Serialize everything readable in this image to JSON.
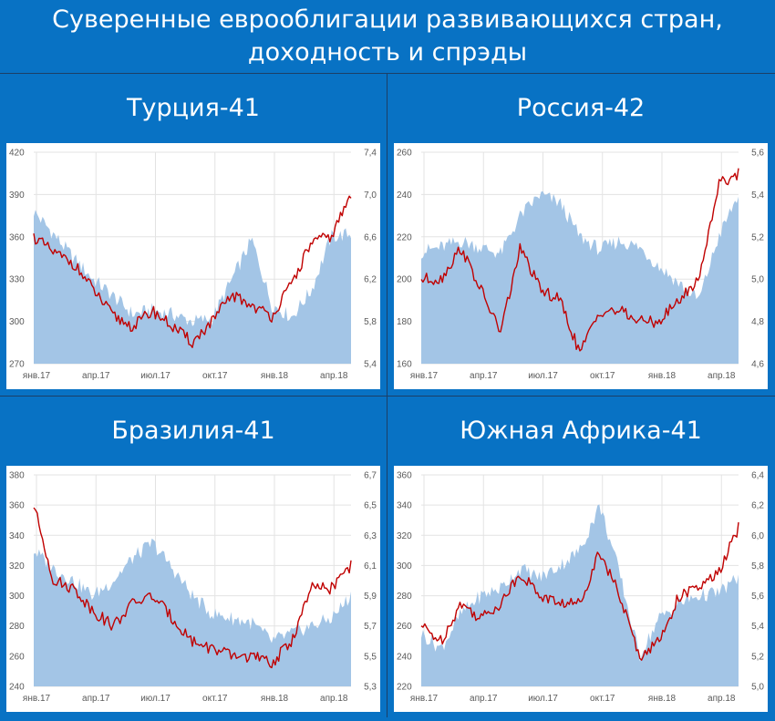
{
  "title_lines": [
    "Суверенные еврооблигации развивающихся стран,",
    "доходность и спрэды"
  ],
  "colors": {
    "background": "#0872c4",
    "area": "#a3c5e6",
    "line": "#c00000",
    "grid": "#e3e3e3"
  },
  "chart_data": [
    {
      "type": "area+line",
      "title": "Турция-41",
      "categories": [
        "янв.17",
        "апр.17",
        "июл.17",
        "окт.17",
        "янв.18",
        "апр.18"
      ],
      "x": [
        "2017-01",
        "2017-02",
        "2017-03",
        "2017-04",
        "2017-05",
        "2017-06",
        "2017-07",
        "2017-08",
        "2017-09",
        "2017-10",
        "2017-11",
        "2017-12",
        "2018-01",
        "2018-02",
        "2018-03",
        "2018-04",
        "2018-05"
      ],
      "left_axis": {
        "ticks": [
          "420",
          "390",
          "360",
          "330",
          "300",
          "270"
        ],
        "ylim": [
          270,
          420
        ]
      },
      "right_axis": {
        "ticks": [
          "7,4",
          "7,0",
          "6,6",
          "6,2",
          "5,8",
          "5,4"
        ],
        "ylim": [
          5.4,
          7.4
        ]
      },
      "series": [
        {
          "kind": "area",
          "axis": "left",
          "values": [
            378,
            362,
            345,
            330,
            318,
            305,
            308,
            305,
            300,
            302,
            330,
            358,
            312,
            303,
            322,
            360,
            362
          ]
        },
        {
          "kind": "line",
          "axis": "right",
          "values": [
            6.6,
            6.45,
            6.35,
            6.1,
            5.85,
            5.75,
            5.9,
            5.75,
            5.6,
            5.8,
            6.05,
            5.95,
            5.85,
            6.15,
            6.55,
            6.6,
            7.0
          ]
        }
      ]
    },
    {
      "type": "area+line",
      "title": "Россия-42",
      "categories": [
        "янв.17",
        "апр.17",
        "июл.17",
        "окт.17",
        "янв.18",
        "апр.18"
      ],
      "x": [
        "2017-01",
        "2017-02",
        "2017-03",
        "2017-04",
        "2017-05",
        "2017-06",
        "2017-07",
        "2017-08",
        "2017-09",
        "2017-10",
        "2017-11",
        "2017-12",
        "2018-01",
        "2018-02",
        "2018-03",
        "2018-04",
        "2018-05"
      ],
      "left_axis": {
        "ticks": [
          "260",
          "240",
          "220",
          "200",
          "180",
          "160"
        ],
        "ylim": [
          160,
          260
        ]
      },
      "right_axis": {
        "ticks": [
          "5,6",
          "5,4",
          "5,2",
          "5,0",
          "4,8",
          "4,6"
        ],
        "ylim": [
          4.6,
          5.6
        ]
      },
      "series": [
        {
          "kind": "area",
          "axis": "left",
          "values": [
            213,
            215,
            218,
            215,
            212,
            230,
            240,
            236,
            220,
            214,
            218,
            215,
            206,
            198,
            190,
            220,
            240
          ]
        },
        {
          "kind": "line",
          "axis": "right",
          "values": [
            5.0,
            5.0,
            5.15,
            4.95,
            4.75,
            5.15,
            4.95,
            4.9,
            4.65,
            4.85,
            4.85,
            4.8,
            4.8,
            4.9,
            5.0,
            5.45,
            5.5
          ]
        }
      ]
    },
    {
      "type": "area+line",
      "title": "Бразилия-41",
      "categories": [
        "янв.17",
        "апр.17",
        "июл.17",
        "окт.17",
        "янв.18",
        "апр.18"
      ],
      "x": [
        "2017-01",
        "2017-02",
        "2017-03",
        "2017-04",
        "2017-05",
        "2017-06",
        "2017-07",
        "2017-08",
        "2017-09",
        "2017-10",
        "2017-11",
        "2017-12",
        "2018-01",
        "2018-02",
        "2018-03",
        "2018-04",
        "2018-05"
      ],
      "left_axis": {
        "ticks": [
          "380",
          "360",
          "340",
          "320",
          "300",
          "280",
          "260",
          "240"
        ],
        "ylim": [
          240,
          380
        ]
      },
      "right_axis": {
        "ticks": [
          "6,7",
          "6,5",
          "6,3",
          "6,1",
          "5,9",
          "5,7",
          "5,5",
          "5,3"
        ],
        "ylim": [
          5.3,
          6.7
        ]
      },
      "series": [
        {
          "kind": "area",
          "axis": "left",
          "values": [
            330,
            318,
            310,
            300,
            310,
            325,
            335,
            318,
            300,
            288,
            285,
            282,
            270,
            275,
            280,
            285,
            300
          ]
        },
        {
          "kind": "line",
          "axis": "right",
          "values": [
            6.5,
            6.0,
            5.95,
            5.8,
            5.7,
            5.85,
            5.9,
            5.75,
            5.6,
            5.55,
            5.5,
            5.5,
            5.45,
            5.6,
            5.95,
            5.95,
            6.1
          ]
        }
      ]
    },
    {
      "type": "area+line",
      "title": "Южная Африка-41",
      "categories": [
        "янв.17",
        "апр.17",
        "июл.17",
        "окт.17",
        "янв.18",
        "апр.18"
      ],
      "x": [
        "2017-01",
        "2017-02",
        "2017-03",
        "2017-04",
        "2017-05",
        "2017-06",
        "2017-07",
        "2017-08",
        "2017-09",
        "2017-10",
        "2017-11",
        "2017-12",
        "2018-01",
        "2018-02",
        "2018-03",
        "2018-04",
        "2018-05"
      ],
      "left_axis": {
        "ticks": [
          "360",
          "340",
          "320",
          "300",
          "280",
          "260",
          "240",
          "220"
        ],
        "ylim": [
          220,
          360
        ]
      },
      "right_axis": {
        "ticks": [
          "6,4",
          "6,2",
          "6,0",
          "5,8",
          "5,6",
          "5,4",
          "5,2",
          "5,0"
        ],
        "ylim": [
          5.0,
          6.4
        ]
      },
      "series": [
        {
          "kind": "area",
          "axis": "left",
          "values": [
            255,
            245,
            268,
            280,
            285,
            298,
            292,
            300,
            310,
            340,
            295,
            240,
            265,
            275,
            280,
            282,
            292
          ]
        },
        {
          "kind": "line",
          "axis": "right",
          "values": [
            5.4,
            5.3,
            5.55,
            5.45,
            5.55,
            5.75,
            5.6,
            5.55,
            5.55,
            5.9,
            5.6,
            5.2,
            5.3,
            5.6,
            5.65,
            5.75,
            6.05
          ]
        }
      ]
    }
  ]
}
